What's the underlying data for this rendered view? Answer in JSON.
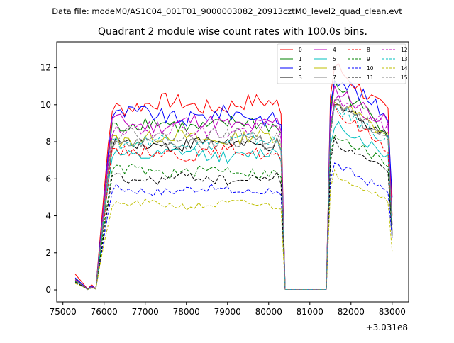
{
  "figure": {
    "suptitle": "Data file: modeM0/AS1C04_001T01_9000003082_20913cztM0_level2_quad_clean.evt"
  },
  "chart_data": {
    "type": "line",
    "title": "Quadrant 2 module wise count rates with 100.0s bins.",
    "xlabel": "",
    "ylabel": "",
    "x_offset_label": "+3.031e8",
    "xlim": [
      74850,
      83400
    ],
    "ylim": [
      -0.65,
      13.4
    ],
    "xticks": [
      75000,
      76000,
      77000,
      78000,
      79000,
      80000,
      81000,
      82000,
      83000
    ],
    "xtick_labels": [
      "75000",
      "76000",
      "77000",
      "78000",
      "79000",
      "80000",
      "81000",
      "82000",
      "83000"
    ],
    "yticks": [
      0,
      2,
      4,
      6,
      8,
      10,
      12
    ],
    "ytick_labels": [
      "0",
      "2",
      "4",
      "6",
      "8",
      "10",
      "12"
    ],
    "grid": false,
    "legend": {
      "placement": "top-right",
      "columns": 4
    },
    "segments": [
      {
        "x_start": 75300,
        "x_end": 80300
      },
      {
        "x_start": 80400,
        "x_end": 81400
      },
      {
        "x_start": 81500,
        "x_end": 83000
      }
    ],
    "series": [
      {
        "name": "0",
        "color": "#ff0000",
        "dash": false,
        "level": 10.0,
        "start": 0.8,
        "peak": 12.3,
        "end2": 9.5,
        "end_drop": 4.0
      },
      {
        "name": "1",
        "color": "#008000",
        "dash": false,
        "level": 8.9,
        "start": 0.55,
        "peak": 11.3,
        "end2": 8.6,
        "end_drop": 3.5
      },
      {
        "name": "2",
        "color": "#0000ff",
        "dash": false,
        "level": 9.4,
        "start": 0.6,
        "peak": 11.8,
        "end2": 9.4,
        "end_drop": 5.0
      },
      {
        "name": "3",
        "color": "#000000",
        "dash": false,
        "level": 7.9,
        "start": 0.45,
        "peak": 10.2,
        "end2": 8.4,
        "end_drop": 3.1
      },
      {
        "name": "4",
        "color": "#bf00bf",
        "dash": false,
        "level": 9.0,
        "start": 0.5,
        "peak": 11.0,
        "end2": 9.0,
        "end_drop": 3.5
      },
      {
        "name": "5",
        "color": "#00bfbf",
        "dash": false,
        "level": 7.3,
        "start": 0.4,
        "peak": 9.2,
        "end2": 7.2,
        "end_drop": 3.0
      },
      {
        "name": "6",
        "color": "#bfbf00",
        "dash": false,
        "level": 8.2,
        "start": 0.45,
        "peak": 10.4,
        "end2": 8.3,
        "end_drop": 3.0
      },
      {
        "name": "7",
        "color": "#808080",
        "dash": false,
        "level": 7.9,
        "start": 0.45,
        "peak": 10.3,
        "end2": 8.0,
        "end_drop": 3.2
      },
      {
        "name": "8",
        "color": "#ff0000",
        "dash": true,
        "level": 7.4,
        "start": 0.45,
        "peak": 9.8,
        "end2": 7.7,
        "end_drop": 3.0
      },
      {
        "name": "9",
        "color": "#008000",
        "dash": true,
        "level": 6.4,
        "start": 0.4,
        "peak": 8.6,
        "end2": 6.8,
        "end_drop": 3.0
      },
      {
        "name": "10",
        "color": "#0000ff",
        "dash": true,
        "level": 5.4,
        "start": 0.35,
        "peak": 6.9,
        "end2": 5.3,
        "end_drop": 2.8
      },
      {
        "name": "11",
        "color": "#000000",
        "dash": true,
        "level": 6.0,
        "start": 0.35,
        "peak": 8.1,
        "end2": 6.3,
        "end_drop": 2.9
      },
      {
        "name": "12",
        "color": "#bf00bf",
        "dash": true,
        "level": 8.6,
        "start": 0.5,
        "peak": 10.5,
        "end2": 8.8,
        "end_drop": 3.0
      },
      {
        "name": "13",
        "color": "#00bfbf",
        "dash": true,
        "level": 8.0,
        "start": 0.45,
        "peak": 10.0,
        "end2": 8.1,
        "end_drop": 3.0
      },
      {
        "name": "14",
        "color": "#bfbf00",
        "dash": true,
        "level": 4.6,
        "start": 0.3,
        "peak": 6.4,
        "end2": 4.9,
        "end_drop": 2.1
      },
      {
        "name": "15",
        "color": "#808080",
        "dash": true,
        "level": 8.3,
        "start": 0.45,
        "peak": 10.3,
        "end2": 8.3,
        "end_drop": 3.1
      }
    ]
  }
}
